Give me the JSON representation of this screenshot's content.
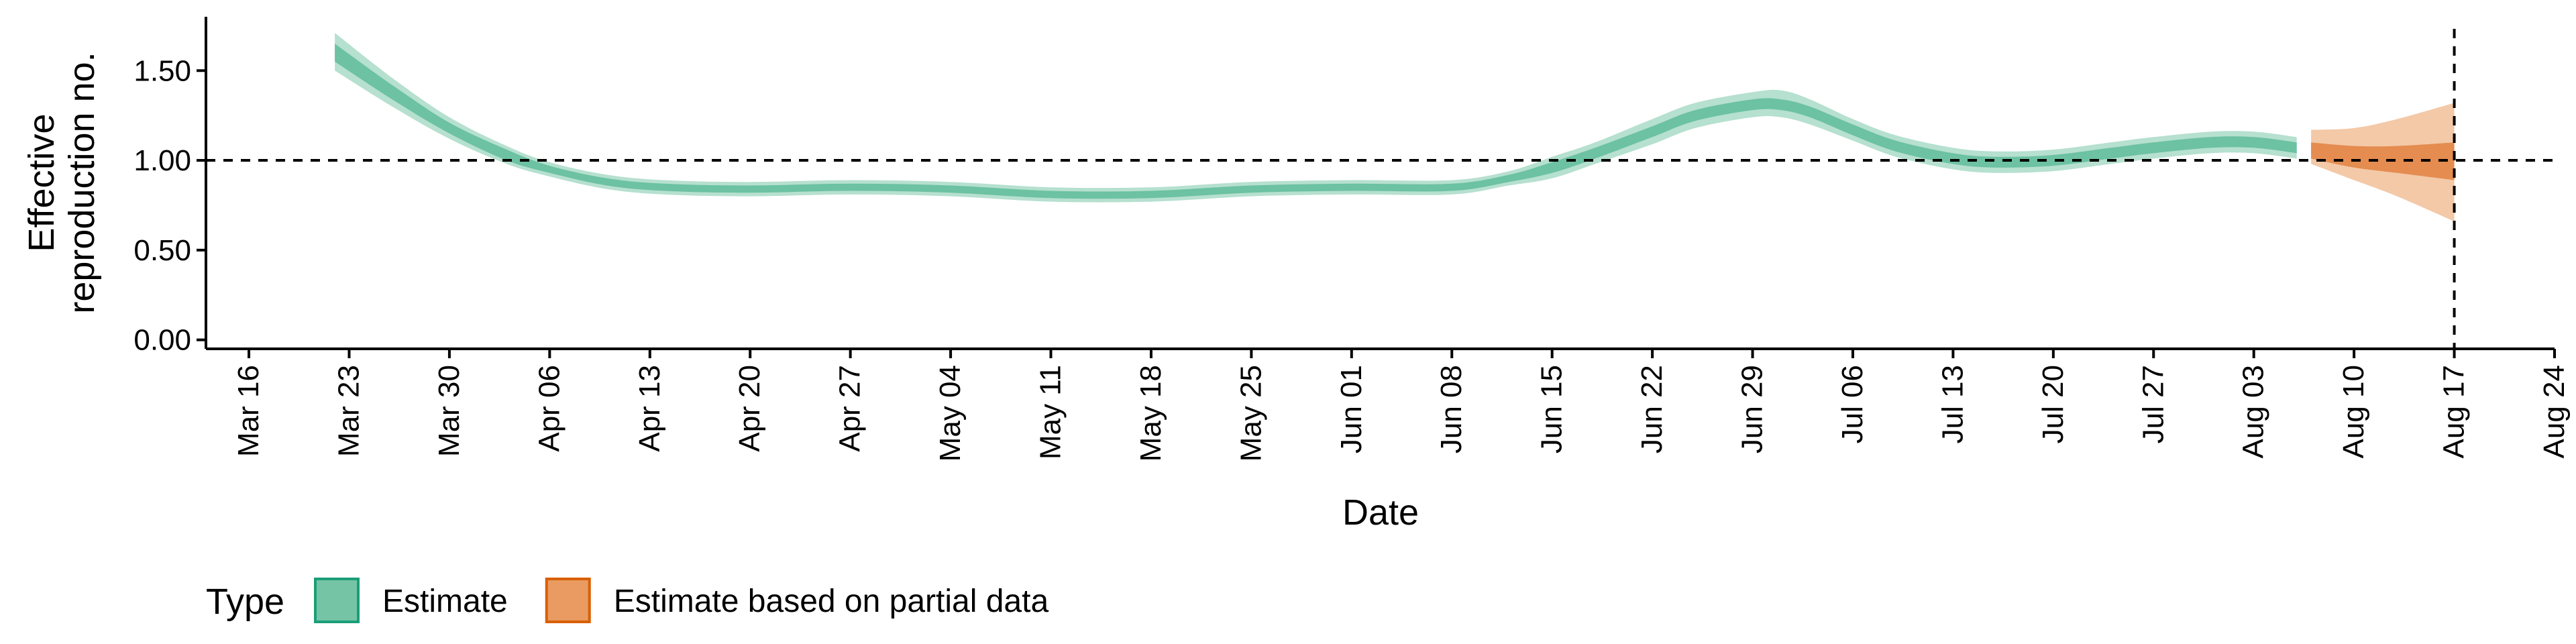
{
  "chart_data": {
    "type": "area",
    "title": "",
    "xlabel": "Date",
    "ylabel_lines": [
      "Effective",
      "reproduction no."
    ],
    "xlim": [
      "2020-03-13",
      "2020-08-24"
    ],
    "ylim": [
      -0.05,
      1.8
    ],
    "y_ticks": [
      0.0,
      0.5,
      1.0,
      1.5
    ],
    "y_tick_labels": [
      "0.00",
      "0.50",
      "1.00",
      "1.50"
    ],
    "x_ticks": [
      "2020-03-16",
      "2020-03-23",
      "2020-03-30",
      "2020-04-06",
      "2020-04-13",
      "2020-04-20",
      "2020-04-27",
      "2020-05-04",
      "2020-05-11",
      "2020-05-18",
      "2020-05-25",
      "2020-06-01",
      "2020-06-08",
      "2020-06-15",
      "2020-06-22",
      "2020-06-29",
      "2020-07-06",
      "2020-07-13",
      "2020-07-20",
      "2020-07-27",
      "2020-08-03",
      "2020-08-10",
      "2020-08-17",
      "2020-08-24"
    ],
    "x_tick_labels": [
      "Mar 16",
      "Mar 23",
      "Mar 30",
      "Apr 06",
      "Apr 13",
      "Apr 20",
      "Apr 27",
      "May 04",
      "May 11",
      "May 18",
      "May 25",
      "Jun 01",
      "Jun 08",
      "Jun 15",
      "Jun 22",
      "Jun 29",
      "Jul 06",
      "Jul 13",
      "Jul 20",
      "Jul 27",
      "Aug 03",
      "Aug 10",
      "Aug 17",
      "Aug 24"
    ],
    "reference_lines": {
      "horizontal_y": 1.0,
      "vertical_x": "2020-08-17"
    },
    "grid": false,
    "legend": {
      "title": "Type",
      "position": "bottom-left",
      "items": [
        {
          "label": "Estimate",
          "fill": "#76c4a6",
          "border": "#1b9e77"
        },
        {
          "label": "Estimate based on partial data",
          "fill": "#e99b62",
          "border": "#d95f02"
        }
      ]
    },
    "series": [
      {
        "name": "Estimate",
        "color_outer": "#b6e0cf",
        "color_inner": "#6cc2a2",
        "points": [
          {
            "x": "2020-03-22",
            "median": 1.6,
            "inner": [
              1.55,
              1.65
            ],
            "outer": [
              1.5,
              1.71
            ]
          },
          {
            "x": "2020-03-26",
            "median": 1.38,
            "inner": [
              1.34,
              1.42
            ],
            "outer": [
              1.3,
              1.46
            ]
          },
          {
            "x": "2020-03-30",
            "median": 1.18,
            "inner": [
              1.15,
              1.21
            ],
            "outer": [
              1.12,
              1.24
            ]
          },
          {
            "x": "2020-04-03",
            "median": 1.03,
            "inner": [
              1.0,
              1.06
            ],
            "outer": [
              0.98,
              1.08
            ]
          },
          {
            "x": "2020-04-06",
            "median": 0.95,
            "inner": [
              0.93,
              0.97
            ],
            "outer": [
              0.91,
              0.99
            ]
          },
          {
            "x": "2020-04-10",
            "median": 0.88,
            "inner": [
              0.86,
              0.9
            ],
            "outer": [
              0.84,
              0.92
            ]
          },
          {
            "x": "2020-04-14",
            "median": 0.85,
            "inner": [
              0.83,
              0.87
            ],
            "outer": [
              0.81,
              0.89
            ]
          },
          {
            "x": "2020-04-20",
            "median": 0.84,
            "inner": [
              0.82,
              0.86
            ],
            "outer": [
              0.8,
              0.88
            ]
          },
          {
            "x": "2020-04-27",
            "median": 0.85,
            "inner": [
              0.83,
              0.87
            ],
            "outer": [
              0.81,
              0.89
            ]
          },
          {
            "x": "2020-05-04",
            "median": 0.84,
            "inner": [
              0.82,
              0.86
            ],
            "outer": [
              0.8,
              0.88
            ]
          },
          {
            "x": "2020-05-11",
            "median": 0.81,
            "inner": [
              0.79,
              0.83
            ],
            "outer": [
              0.77,
              0.85
            ]
          },
          {
            "x": "2020-05-18",
            "median": 0.81,
            "inner": [
              0.79,
              0.83
            ],
            "outer": [
              0.77,
              0.85
            ]
          },
          {
            "x": "2020-05-25",
            "median": 0.84,
            "inner": [
              0.82,
              0.86
            ],
            "outer": [
              0.8,
              0.88
            ]
          },
          {
            "x": "2020-06-01",
            "median": 0.85,
            "inner": [
              0.83,
              0.87
            ],
            "outer": [
              0.81,
              0.89
            ]
          },
          {
            "x": "2020-06-08",
            "median": 0.85,
            "inner": [
              0.83,
              0.87
            ],
            "outer": [
              0.81,
              0.89
            ]
          },
          {
            "x": "2020-06-12",
            "median": 0.9,
            "inner": [
              0.88,
              0.92
            ],
            "outer": [
              0.86,
              0.94
            ]
          },
          {
            "x": "2020-06-15",
            "median": 0.96,
            "inner": [
              0.93,
              0.99
            ],
            "outer": [
              0.9,
              1.02
            ]
          },
          {
            "x": "2020-06-18",
            "median": 1.04,
            "inner": [
              1.01,
              1.07
            ],
            "outer": [
              0.98,
              1.1
            ]
          },
          {
            "x": "2020-06-22",
            "median": 1.16,
            "inner": [
              1.13,
              1.19
            ],
            "outer": [
              1.09,
              1.23
            ]
          },
          {
            "x": "2020-06-25",
            "median": 1.25,
            "inner": [
              1.22,
              1.28
            ],
            "outer": [
              1.18,
              1.32
            ]
          },
          {
            "x": "2020-06-29",
            "median": 1.31,
            "inner": [
              1.28,
              1.34
            ],
            "outer": [
              1.24,
              1.38
            ]
          },
          {
            "x": "2020-07-01",
            "median": 1.31,
            "inner": [
              1.28,
              1.34
            ],
            "outer": [
              1.24,
              1.39
            ]
          },
          {
            "x": "2020-07-03",
            "median": 1.27,
            "inner": [
              1.24,
              1.3
            ],
            "outer": [
              1.2,
              1.34
            ]
          },
          {
            "x": "2020-07-06",
            "median": 1.17,
            "inner": [
              1.14,
              1.2
            ],
            "outer": [
              1.11,
              1.23
            ]
          },
          {
            "x": "2020-07-09",
            "median": 1.08,
            "inner": [
              1.05,
              1.11
            ],
            "outer": [
              1.02,
              1.14
            ]
          },
          {
            "x": "2020-07-13",
            "median": 1.01,
            "inner": [
              0.98,
              1.04
            ],
            "outer": [
              0.95,
              1.07
            ]
          },
          {
            "x": "2020-07-16",
            "median": 0.99,
            "inner": [
              0.96,
              1.02
            ],
            "outer": [
              0.93,
              1.05
            ]
          },
          {
            "x": "2020-07-20",
            "median": 1.0,
            "inner": [
              0.97,
              1.03
            ],
            "outer": [
              0.94,
              1.06
            ]
          },
          {
            "x": "2020-07-24",
            "median": 1.04,
            "inner": [
              1.01,
              1.07
            ],
            "outer": [
              0.98,
              1.1
            ]
          },
          {
            "x": "2020-07-27",
            "median": 1.07,
            "inner": [
              1.04,
              1.1
            ],
            "outer": [
              1.01,
              1.13
            ]
          },
          {
            "x": "2020-07-31",
            "median": 1.1,
            "inner": [
              1.07,
              1.13
            ],
            "outer": [
              1.04,
              1.16
            ]
          },
          {
            "x": "2020-08-03",
            "median": 1.1,
            "inner": [
              1.07,
              1.13
            ],
            "outer": [
              1.04,
              1.16
            ]
          },
          {
            "x": "2020-08-06",
            "median": 1.07,
            "inner": [
              1.04,
              1.1
            ],
            "outer": [
              1.01,
              1.13
            ]
          }
        ]
      },
      {
        "name": "Estimate based on partial data",
        "color_outer": "#f3c9a8",
        "color_inner": "#e58c50",
        "points": [
          {
            "x": "2020-08-07",
            "median": 1.05,
            "inner": [
              1.01,
              1.1
            ],
            "outer": [
              0.98,
              1.17
            ]
          },
          {
            "x": "2020-08-10",
            "median": 1.02,
            "inner": [
              0.96,
              1.08
            ],
            "outer": [
              0.89,
              1.18
            ]
          },
          {
            "x": "2020-08-13",
            "median": 1.0,
            "inner": [
              0.93,
              1.08
            ],
            "outer": [
              0.8,
              1.23
            ]
          },
          {
            "x": "2020-08-17",
            "median": 0.99,
            "inner": [
              0.89,
              1.1
            ],
            "outer": [
              0.66,
              1.32
            ]
          }
        ]
      }
    ]
  }
}
